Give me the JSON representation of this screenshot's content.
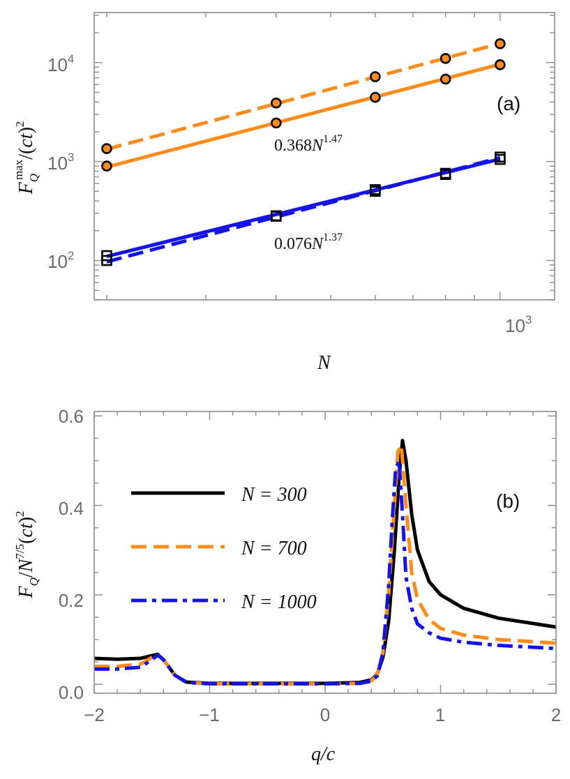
{
  "colors": {
    "orange": "#FF8C1A",
    "blue": "#1414E6",
    "black": "#000000",
    "frame": "#8a8a8a",
    "tick_text": "#6a6a6a"
  },
  "chart_data": [
    {
      "panel": "(a)",
      "type": "scatter",
      "x_scale": "log",
      "y_scale": "log",
      "xlabel": "N",
      "ylabel": "F_Q^max/(ct)^2",
      "xlim": [
        190,
        1250
      ],
      "ylim": [
        40,
        32000
      ],
      "x_tick_labels": [
        {
          "value": 1000,
          "base": "10",
          "exp": "3"
        }
      ],
      "y_tick_labels": [
        {
          "value": 100,
          "base": "10",
          "exp": "2"
        },
        {
          "value": 1000,
          "base": "10",
          "exp": "3"
        },
        {
          "value": 10000,
          "base": "10",
          "exp": "4"
        }
      ],
      "series": [
        {
          "name": "orange-dashed-circles",
          "color": "#FF8C1A",
          "dash": "dashed",
          "marker": "circle",
          "x": [
            200,
            400,
            600,
            800,
            1000
          ],
          "y": [
            1350,
            3900,
            7200,
            11000,
            15500
          ]
        },
        {
          "name": "orange-solid-circles",
          "color": "#FF8C1A",
          "dash": "solid",
          "marker": "circle",
          "x": [
            200,
            400,
            600,
            800,
            1000
          ],
          "y": [
            900,
            2450,
            4450,
            6800,
            9500
          ]
        },
        {
          "name": "blue-solid-squares",
          "color": "#1414E6",
          "dash": "solid",
          "marker": "square",
          "x": [
            200,
            400,
            600,
            800,
            1000
          ],
          "y": [
            112,
            283,
            520,
            760,
            1110
          ]
        },
        {
          "name": "blue-dashed-squares",
          "color": "#1414E6",
          "dash": "dashed",
          "marker": "square",
          "x": [
            200,
            400,
            600,
            800,
            1000
          ],
          "y": [
            100,
            280,
            500,
            740,
            1050
          ]
        }
      ],
      "fit_lines": [
        {
          "name": "orange-dashed-fit",
          "color": "#FF8C1A",
          "dash": "dashed",
          "x_range": [
            200,
            1000
          ],
          "y_range": [
            1330,
            15600
          ]
        },
        {
          "name": "orange-solid-fit",
          "color": "#FF8C1A",
          "dash": "solid",
          "x_range": [
            200,
            1000
          ],
          "y_range": [
            880,
            9600
          ]
        },
        {
          "name": "blue-solid-fit",
          "color": "#1414E6",
          "dash": "solid",
          "x_range": [
            200,
            1000
          ],
          "y_range": [
            110,
            1060
          ]
        },
        {
          "name": "blue-dashed-fit",
          "color": "#1414E6",
          "dash": "dashed",
          "x_range": [
            200,
            1000
          ],
          "y_range": [
            97,
            1095
          ]
        }
      ],
      "annotations": [
        {
          "name": "orange-fit-annotation",
          "coef": "0.368",
          "var": "N",
          "exp": "1.47",
          "x": 210,
          "y": 1400
        },
        {
          "name": "blue-fit-annotation",
          "coef": "0.076",
          "var": "N",
          "exp": "1.37",
          "x": 210,
          "y": 133
        }
      ]
    },
    {
      "panel": "(b)",
      "type": "line",
      "xlabel": "q/c",
      "ylabel": "F_Q/N^{7/5}(ct)^2",
      "xlim": [
        -2,
        2
      ],
      "ylim": [
        -0.02,
        0.61
      ],
      "x_ticks": [
        -2,
        -1,
        0,
        1,
        2
      ],
      "x_tick_labels": [
        "−2",
        "−1",
        "0",
        "1",
        "2"
      ],
      "y_ticks": [
        0.0,
        0.2,
        0.4,
        0.6
      ],
      "y_tick_labels": [
        "0.0",
        "0.2",
        "0.4",
        "0.6"
      ],
      "legend": [
        {
          "label": "N = 300",
          "color": "#000000",
          "dash": "solid"
        },
        {
          "label": "N = 700",
          "color": "#FF8C1A",
          "dash": "dashed"
        },
        {
          "label": "N = 1000",
          "color": "#1414E6",
          "dash": "dashdot"
        }
      ],
      "series": [
        {
          "name": "N = 300",
          "color": "#000000",
          "dash": "solid",
          "x": [
            -2.0,
            -1.8,
            -1.6,
            -1.5,
            -1.45,
            -1.4,
            -1.3,
            -1.2,
            -1.0,
            0.0,
            0.3,
            0.4,
            0.45,
            0.5,
            0.55,
            0.6,
            0.64,
            0.67,
            0.7,
            0.75,
            0.8,
            0.9,
            1.0,
            1.2,
            1.5,
            2.0
          ],
          "y": [
            0.058,
            0.056,
            0.058,
            0.064,
            0.067,
            0.055,
            0.02,
            0.005,
            0.002,
            0.002,
            0.004,
            0.01,
            0.022,
            0.06,
            0.14,
            0.3,
            0.46,
            0.545,
            0.5,
            0.38,
            0.3,
            0.23,
            0.2,
            0.17,
            0.148,
            0.128
          ]
        },
        {
          "name": "N = 700",
          "color": "#FF8C1A",
          "dash": "dashed",
          "x": [
            -2.0,
            -1.8,
            -1.6,
            -1.5,
            -1.45,
            -1.4,
            -1.3,
            -1.2,
            -1.0,
            0.0,
            0.3,
            0.4,
            0.45,
            0.5,
            0.55,
            0.6,
            0.63,
            0.66,
            0.7,
            0.75,
            0.8,
            0.9,
            1.0,
            1.2,
            1.5,
            2.0
          ],
          "y": [
            0.04,
            0.04,
            0.045,
            0.06,
            0.066,
            0.055,
            0.02,
            0.004,
            0.001,
            0.001,
            0.002,
            0.008,
            0.02,
            0.07,
            0.2,
            0.4,
            0.52,
            0.535,
            0.4,
            0.25,
            0.19,
            0.145,
            0.125,
            0.11,
            0.1,
            0.092
          ]
        },
        {
          "name": "N = 1000",
          "color": "#1414E6",
          "dash": "dashdot",
          "x": [
            -2.0,
            -1.8,
            -1.6,
            -1.5,
            -1.45,
            -1.4,
            -1.3,
            -1.2,
            -1.0,
            0.0,
            0.3,
            0.4,
            0.45,
            0.5,
            0.55,
            0.58,
            0.61,
            0.64,
            0.67,
            0.7,
            0.75,
            0.8,
            0.9,
            1.0,
            1.2,
            1.5,
            2.0
          ],
          "y": [
            0.034,
            0.034,
            0.038,
            0.055,
            0.065,
            0.055,
            0.02,
            0.004,
            0.001,
            0.001,
            0.002,
            0.007,
            0.018,
            0.07,
            0.22,
            0.36,
            0.48,
            0.5,
            0.38,
            0.24,
            0.17,
            0.135,
            0.115,
            0.103,
            0.094,
            0.087,
            0.08
          ]
        }
      ]
    }
  ],
  "panel_labels": {
    "a": "(a)",
    "b": "(b)"
  }
}
